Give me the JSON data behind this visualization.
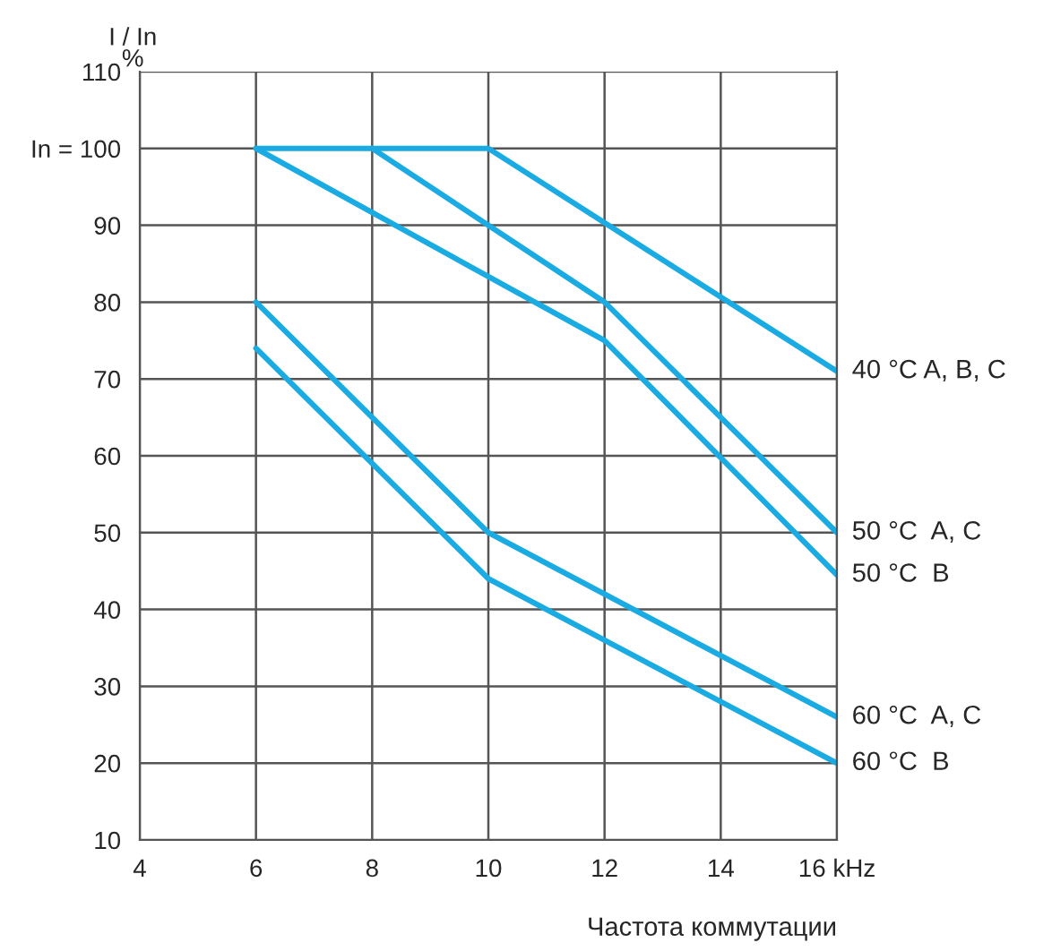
{
  "chart_data": {
    "type": "line",
    "ylabel": "I / In\n%",
    "xlabel": "Частота коммутации",
    "xlim": [
      4,
      16
    ],
    "xticks": [
      4,
      6,
      8,
      10,
      12,
      14,
      {
        "value": 16,
        "label": "16 kHz"
      }
    ],
    "ylim": [
      10,
      110
    ],
    "yticks": [
      10,
      20,
      30,
      40,
      50,
      60,
      70,
      80,
      90,
      {
        "value": 100,
        "label": "In = 100"
      },
      110
    ],
    "grid": true,
    "legend": false,
    "marker": "none",
    "line_style": "solid",
    "series": [
      {
        "name": "40 °C A, B, C",
        "color": "#1aabe2",
        "x": [
          6,
          10,
          16
        ],
        "values": [
          100,
          100,
          71
        ]
      },
      {
        "name": "50 °C  A, C",
        "color": "#1aabe2",
        "x": [
          8,
          12,
          16
        ],
        "values": [
          100,
          80,
          50
        ]
      },
      {
        "name": "50 °C  B",
        "color": "#1aabe2",
        "x": [
          6,
          12,
          16
        ],
        "values": [
          100,
          75,
          44.5
        ]
      },
      {
        "name": "60 °C  A, C",
        "color": "#1aabe2",
        "x": [
          6,
          10,
          16
        ],
        "values": [
          80,
          50,
          26
        ]
      },
      {
        "name": "60 °C  B",
        "color": "#1aabe2",
        "x": [
          6,
          10,
          16
        ],
        "values": [
          74,
          44,
          20
        ]
      }
    ]
  }
}
